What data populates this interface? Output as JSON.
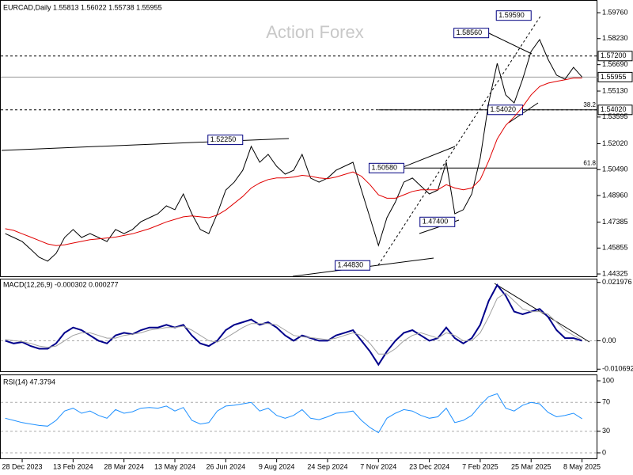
{
  "chart_data": {
    "type": "financial",
    "title": "EURCAD,Daily 1.55813 1.56022 1.55738 1.55955",
    "watermark": "Action Forex",
    "categories": [
      null,
      null,
      "28 Dec 2023",
      null,
      null,
      null,
      null,
      null,
      "13 Feb 2024",
      null,
      null,
      null,
      null,
      null,
      "28 Mar 2024",
      null,
      null,
      null,
      null,
      null,
      "13 May 2024",
      null,
      null,
      null,
      null,
      null,
      "26 Jun 2024",
      null,
      null,
      null,
      null,
      null,
      "9 Aug 2024",
      null,
      null,
      null,
      null,
      null,
      "24 Sep 2024",
      null,
      null,
      null,
      null,
      null,
      "7 Nov 2024",
      null,
      null,
      null,
      null,
      null,
      "23 Dec 2024",
      null,
      null,
      null,
      null,
      null,
      "7 Feb 2025",
      null,
      null,
      null,
      null,
      null,
      "25 Mar 2025",
      null,
      null,
      null,
      null,
      null,
      "8 May 2025"
    ],
    "price": {
      "ylim": [
        1.4414,
        1.6051
      ],
      "yticks": [
        {
          "value": 1.5976,
          "label": "1.59760"
        },
        {
          "value": 1.5823,
          "label": "1.58230"
        },
        {
          "value": 1.5669,
          "label": "1.56690"
        },
        {
          "value": 1.5513,
          "label": "1.55130"
        },
        {
          "value": 1.53595,
          "label": "1.53595"
        },
        {
          "value": 1.5202,
          "label": "1.52020"
        },
        {
          "value": 1.5049,
          "label": "1.50490"
        },
        {
          "value": 1.4896,
          "label": "1.48960"
        },
        {
          "value": 1.47385,
          "label": "1.47385"
        },
        {
          "value": 1.45855,
          "label": "1.45855"
        },
        {
          "value": 1.44325,
          "label": "1.44325"
        }
      ],
      "series": [
        {
          "name": "Close",
          "color": "#000000",
          "values": [
            1.4671,
            1.4648,
            1.4624,
            1.4578,
            1.4531,
            1.4508,
            1.4554,
            1.4648,
            1.4695,
            1.4648,
            1.4671,
            1.4648,
            1.4624,
            1.4695,
            1.4671,
            1.4695,
            1.4741,
            1.4765,
            1.4788,
            1.4835,
            1.4812,
            1.4905,
            1.4788,
            1.4695,
            1.4671,
            1.4788,
            1.4928,
            1.4975,
            1.5045,
            1.5186,
            1.5092,
            1.5139,
            1.5069,
            1.5022,
            1.5045,
            1.5139,
            1.4999,
            1.4975,
            1.4999,
            1.5045,
            1.5069,
            1.5092,
            1.4928,
            1.4765,
            1.4601,
            1.4765,
            1.4858,
            1.4975,
            1.4999,
            1.4952,
            1.4905,
            1.4928,
            1.5092,
            1.4788,
            1.4812,
            1.4905,
            1.5116,
            1.5443,
            1.5677,
            1.549,
            1.5443,
            1.5583,
            1.5747,
            1.5817,
            1.57,
            1.5607,
            1.5583,
            1.5653,
            1.5596
          ]
        },
        {
          "name": "MA",
          "color": "#e00000",
          "values": [
            1.47,
            1.469,
            1.467,
            1.465,
            1.463,
            1.461,
            1.46,
            1.4605,
            1.4615,
            1.4625,
            1.4635,
            1.464,
            1.4645,
            1.465,
            1.466,
            1.467,
            1.4685,
            1.47,
            1.472,
            1.474,
            1.4755,
            1.477,
            1.4775,
            1.477,
            1.4765,
            1.478,
            1.481,
            1.485,
            1.489,
            1.494,
            1.497,
            1.499,
            1.5,
            1.5,
            1.5005,
            1.5015,
            1.501,
            1.5,
            1.4995,
            1.5005,
            1.502,
            1.5035,
            1.501,
            1.496,
            1.49,
            1.488,
            1.488,
            1.49,
            1.492,
            1.493,
            1.493,
            1.493,
            1.496,
            1.494,
            1.493,
            1.494,
            1.499,
            1.51,
            1.523,
            1.531,
            1.536,
            1.542,
            1.549,
            1.554,
            1.556,
            1.557,
            1.558,
            1.559,
            1.559
          ]
        }
      ],
      "levels": [
        {
          "value": 1.572,
          "label": "1.57200",
          "style": "dashed"
        },
        {
          "value": 1.55955,
          "label": "1.55955",
          "style": "solid"
        },
        {
          "value": 1.5402,
          "label": "1.54020",
          "style": "dashed"
        }
      ],
      "fib": [
        {
          "value": 1.5402,
          "label": "38.2",
          "from": 44
        },
        {
          "value": 1.5058,
          "label": "61.8",
          "from": 47
        }
      ],
      "annotations": [
        {
          "label": "1.52250",
          "value": 1.5225,
          "x": 28
        },
        {
          "label": "1.44830",
          "value": 1.4483,
          "x": 43
        },
        {
          "label": "1.50580",
          "value": 1.5058,
          "x": 47
        },
        {
          "label": "1.47400",
          "value": 1.474,
          "x": 53
        },
        {
          "label": "1.54020",
          "value": 1.5402,
          "x": 61
        },
        {
          "label": "1.58560",
          "value": 1.5856,
          "x": 57
        },
        {
          "label": "1.59590",
          "value": 1.5959,
          "x": 62
        }
      ]
    },
    "macd": {
      "title": "MACD(12,26,9) -0.000302 0.000277",
      "ylim": [
        -0.0118,
        0.0234
      ],
      "yticks": [
        0.021976,
        {
          "value": 0,
          "label": "0.00"
        },
        -0.010692
      ],
      "series": [
        {
          "name": "MACD",
          "color": "#00008b",
          "values": [
            0,
            -0.001,
            -0.0005,
            -0.002,
            -0.003,
            -0.003,
            -0.001,
            0.003,
            0.005,
            0.004,
            0.002,
            0,
            -0.001,
            0.002,
            0.003,
            0.0025,
            0.004,
            0.005,
            0.005,
            0.006,
            0.005,
            0.006,
            0.002,
            -0.001,
            -0.002,
            0,
            0.004,
            0.006,
            0.007,
            0.008,
            0.006,
            0.007,
            0.005,
            0.002,
            0,
            0.002,
            0.001,
            0,
            0,
            0.002,
            0.003,
            0.004,
            0,
            -0.004,
            -0.009,
            -0.004,
            0,
            0.003,
            0.004,
            0.002,
            0,
            0.001,
            0.005,
            0.001,
            -0.001,
            0.001,
            0.006,
            0.015,
            0.021,
            0.017,
            0.011,
            0.01,
            0.011,
            0.012,
            0.009,
            0.004,
            0.001,
            0.001,
            0
          ]
        },
        {
          "name": "Signal",
          "color": "#a0a0a0",
          "values": [
            0.0005,
            0,
            -0.0003,
            -0.001,
            -0.002,
            -0.0025,
            -0.002,
            0,
            0.002,
            0.003,
            0.003,
            0.002,
            0.001,
            0.001,
            0.002,
            0.0025,
            0.003,
            0.004,
            0.0045,
            0.005,
            0.005,
            0.0055,
            0.004,
            0.002,
            0,
            -0.0005,
            0.001,
            0.003,
            0.005,
            0.0065,
            0.0065,
            0.0065,
            0.006,
            0.004,
            0.002,
            0.0015,
            0.0012,
            0.0008,
            0.0004,
            0.001,
            0.002,
            0.003,
            0.002,
            -0.001,
            -0.005,
            -0.005,
            -0.003,
            0,
            0.002,
            0.003,
            0.002,
            0.001,
            0.003,
            0.002,
            0,
            0,
            0.003,
            0.009,
            0.016,
            0.018,
            0.015,
            0.012,
            0.011,
            0.011,
            0.01,
            0.007,
            0.004,
            0.002,
            0.0003
          ]
        }
      ]
    },
    "rsi": {
      "title": "RSI(14) 47.3794",
      "ylim": [
        -8.8,
        107.7
      ],
      "yticks": [
        100,
        70,
        30,
        0
      ],
      "series": [
        {
          "name": "RSI",
          "color": "#1e90ff",
          "values": [
            48,
            45,
            42,
            40,
            38,
            37,
            45,
            58,
            62,
            55,
            58,
            52,
            48,
            60,
            55,
            57,
            62,
            63,
            62,
            65,
            58,
            63,
            45,
            40,
            42,
            58,
            65,
            66,
            68,
            70,
            58,
            62,
            52,
            48,
            52,
            60,
            48,
            46,
            50,
            55,
            56,
            58,
            45,
            35,
            28,
            48,
            55,
            60,
            58,
            52,
            48,
            50,
            62,
            42,
            45,
            52,
            66,
            78,
            82,
            62,
            58,
            66,
            70,
            68,
            56,
            50,
            52,
            55,
            47.38
          ]
        }
      ]
    }
  }
}
